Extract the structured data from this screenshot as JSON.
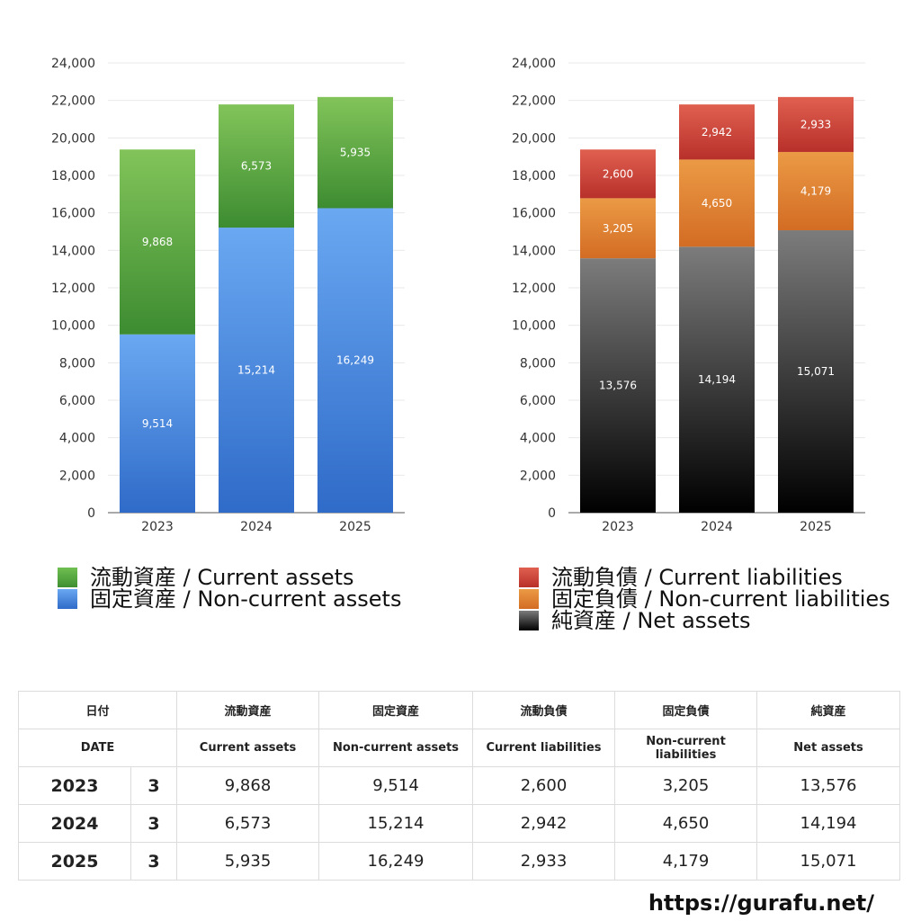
{
  "chart_data": [
    {
      "type": "bar",
      "stacked": true,
      "categories": [
        "2023",
        "2024",
        "2025"
      ],
      "series": [
        {
          "name": "固定資産 / Non-current assets",
          "values": [
            9514,
            15214,
            16249
          ],
          "color_top": "#6aa8f2",
          "color_bottom": "#2f6bc8"
        },
        {
          "name": "流動資産 / Current assets",
          "values": [
            9868,
            6573,
            5935
          ],
          "color_top": "#82c45a",
          "color_bottom": "#3d8c31"
        }
      ],
      "value_labels": [
        [
          "9,514",
          "15,214",
          "16,249"
        ],
        [
          "9,868",
          "6,573",
          "5,935"
        ]
      ],
      "yticks": [
        "0",
        "2,000",
        "4,000",
        "6,000",
        "8,000",
        "10,000",
        "12,000",
        "14,000",
        "16,000",
        "18,000",
        "20,000",
        "22,000",
        "24,000"
      ],
      "ylim": [
        0,
        24000
      ],
      "grid": true,
      "legend_position": "bottom-left"
    },
    {
      "type": "bar",
      "stacked": true,
      "categories": [
        "2023",
        "2024",
        "2025"
      ],
      "series": [
        {
          "name": "純資産 / Net assets",
          "values": [
            13576,
            14194,
            15071
          ],
          "color_top": "#7c7c7c",
          "color_bottom": "#000000"
        },
        {
          "name": "固定負債 / Non-current liabilities",
          "values": [
            3205,
            4650,
            4179
          ],
          "color_top": "#eb9a45",
          "color_bottom": "#d36c24"
        },
        {
          "name": "流動負債 / Current liabilities",
          "values": [
            2600,
            2942,
            2933
          ],
          "color_top": "#e06050",
          "color_bottom": "#b8302a"
        }
      ],
      "value_labels": [
        [
          "13,576",
          "14,194",
          "15,071"
        ],
        [
          "3,205",
          "4,650",
          "4,179"
        ],
        [
          "2,600",
          "2,942",
          "2,933"
        ]
      ],
      "yticks": [
        "0",
        "2,000",
        "4,000",
        "6,000",
        "8,000",
        "10,000",
        "12,000",
        "14,000",
        "16,000",
        "18,000",
        "20,000",
        "22,000",
        "24,000"
      ],
      "ylim": [
        0,
        24000
      ],
      "grid": true,
      "legend_position": "bottom-left"
    }
  ],
  "legend_assets": [
    {
      "label": "流動資産 / Current assets",
      "color": "#5aa848"
    },
    {
      "label": "固定資産 / Non-current assets",
      "color": "#4a86dc"
    }
  ],
  "legend_liab": [
    {
      "label": "流動負債 / Current liabilities",
      "color": "#d24a3e"
    },
    {
      "label": "固定負債 / Non-current liabilities",
      "color": "#e58a38"
    },
    {
      "label": "純資産 / Net assets",
      "color": "#3a3a3a"
    }
  ],
  "table": {
    "header_jp": {
      "date": "日付",
      "ca": "流動資産",
      "nca": "固定資産",
      "cl": "流動負債",
      "ncl": "固定負債",
      "na": "純資産"
    },
    "header_en": {
      "date": "DATE",
      "ca": "Current assets",
      "nca": "Non-current assets",
      "cl": "Current liabilities",
      "ncl": "Non-current liabilities",
      "na": "Net assets"
    },
    "rows": [
      {
        "year": "2023",
        "month": "3",
        "ca": "9,868",
        "nca": "9,514",
        "cl": "2,600",
        "ncl": "3,205",
        "na": "13,576"
      },
      {
        "year": "2024",
        "month": "3",
        "ca": "6,573",
        "nca": "15,214",
        "cl": "2,942",
        "ncl": "4,650",
        "na": "14,194"
      },
      {
        "year": "2025",
        "month": "3",
        "ca": "5,935",
        "nca": "16,249",
        "cl": "2,933",
        "ncl": "4,179",
        "na": "15,071"
      }
    ]
  },
  "site": "https://gurafu.net/"
}
